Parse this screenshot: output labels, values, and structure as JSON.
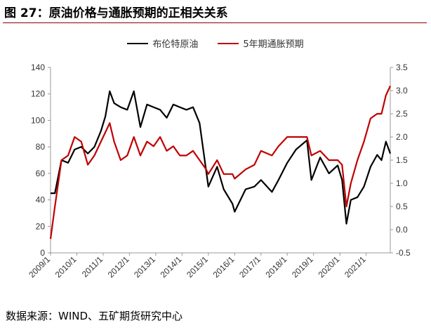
{
  "title": "图 27：原油价格与通胀预期的正相关关系",
  "source": "数据来源：WIND、五矿期货研究中心",
  "colors": {
    "brent": "#000000",
    "inflation": "#c00000",
    "title_rule": "#8b0000"
  },
  "chart_data": {
    "type": "line",
    "title": "图 27：原油价格与通胀预期的正相关关系",
    "y_left_lim": [
      0,
      140
    ],
    "y_right_lim": [
      -0.5,
      3.5
    ],
    "y_left_ticks": [
      "0",
      "20",
      "40",
      "60",
      "80",
      "100",
      "120",
      "140"
    ],
    "y_right_ticks": [
      "-0.5",
      "0.0",
      "0.5",
      "1.0",
      "1.5",
      "2.0",
      "2.5",
      "3.0",
      "3.5"
    ],
    "x_ticks": [
      "2009/1",
      "2010/1",
      "2011/1",
      "2012/1",
      "2013/1",
      "2014/1",
      "2015/1",
      "2016/1",
      "2017/1",
      "2018/1",
      "2019/1",
      "2020/1",
      "2021/1"
    ],
    "x_range": [
      "2009/1",
      "2021/12"
    ],
    "legend_position": "top-center",
    "grid": false,
    "series": [
      {
        "name": "布伦特原油",
        "axis": "left",
        "color": "#000000",
        "x": [
          "2009/1",
          "2009/3",
          "2009/6",
          "2009/9",
          "2009/12",
          "2010/3",
          "2010/6",
          "2010/9",
          "2010/12",
          "2011/2",
          "2011/4",
          "2011/6",
          "2011/9",
          "2011/12",
          "2012/3",
          "2012/6",
          "2012/9",
          "2012/12",
          "2013/3",
          "2013/6",
          "2013/9",
          "2013/12",
          "2014/3",
          "2014/6",
          "2014/9",
          "2014/12",
          "2015/1",
          "2015/5",
          "2015/8",
          "2015/12",
          "2016/1",
          "2016/6",
          "2016/10",
          "2017/1",
          "2017/6",
          "2017/9",
          "2018/1",
          "2018/5",
          "2018/10",
          "2018/12",
          "2019/4",
          "2019/8",
          "2019/12",
          "2020/2",
          "2020/4",
          "2020/6",
          "2020/9",
          "2020/12",
          "2021/3",
          "2021/6",
          "2021/8",
          "2021/10",
          "2021/12"
        ],
        "values": [
          45,
          45,
          70,
          68,
          78,
          80,
          75,
          80,
          92,
          103,
          122,
          113,
          110,
          108,
          122,
          95,
          112,
          110,
          108,
          102,
          112,
          110,
          108,
          110,
          98,
          62,
          50,
          65,
          48,
          37,
          31,
          48,
          50,
          55,
          46,
          55,
          68,
          78,
          85,
          55,
          72,
          60,
          66,
          55,
          22,
          40,
          42,
          50,
          65,
          74,
          70,
          84,
          75
        ]
      },
      {
        "name": "5年期通胀预期",
        "axis": "right",
        "color": "#c00000",
        "x": [
          "2009/1",
          "2009/3",
          "2009/6",
          "2009/9",
          "2009/12",
          "2010/3",
          "2010/6",
          "2010/9",
          "2010/12",
          "2011/2",
          "2011/4",
          "2011/6",
          "2011/9",
          "2011/12",
          "2012/3",
          "2012/6",
          "2012/9",
          "2012/12",
          "2013/3",
          "2013/6",
          "2013/9",
          "2013/12",
          "2014/3",
          "2014/6",
          "2014/9",
          "2014/12",
          "2015/1",
          "2015/5",
          "2015/8",
          "2015/12",
          "2016/1",
          "2016/6",
          "2016/10",
          "2017/1",
          "2017/6",
          "2017/9",
          "2018/1",
          "2018/5",
          "2018/10",
          "2018/12",
          "2019/4",
          "2019/8",
          "2019/12",
          "2020/2",
          "2020/4",
          "2020/6",
          "2020/9",
          "2020/12",
          "2021/3",
          "2021/6",
          "2021/8",
          "2021/10",
          "2021/12"
        ],
        "values": [
          -0.2,
          0.5,
          1.5,
          1.6,
          2.0,
          1.9,
          1.4,
          1.6,
          1.9,
          2.1,
          2.3,
          1.9,
          1.5,
          1.6,
          2.0,
          1.6,
          1.9,
          1.8,
          2.0,
          1.7,
          1.8,
          1.6,
          1.6,
          1.7,
          1.5,
          1.3,
          1.2,
          1.5,
          1.2,
          1.2,
          1.1,
          1.3,
          1.4,
          1.7,
          1.6,
          1.8,
          2.0,
          2.0,
          2.0,
          1.6,
          1.7,
          1.5,
          1.5,
          1.4,
          0.5,
          1.0,
          1.5,
          1.9,
          2.4,
          2.5,
          2.5,
          2.9,
          3.1
        ]
      }
    ]
  }
}
